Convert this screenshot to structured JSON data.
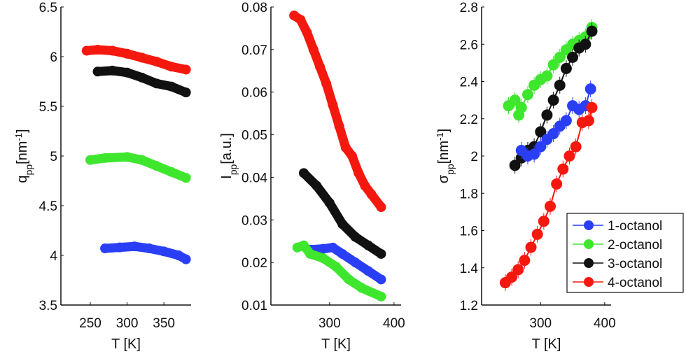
{
  "colors": {
    "1-octanol": "#2a3ff5",
    "2-octanol": "#3ee62e",
    "3-octanol": "#111111",
    "4-octanol": "#f5180f"
  },
  "legend": {
    "entries": [
      "1-octanol",
      "2-octanol",
      "3-octanol",
      "4-octanol"
    ],
    "placement": "bottom-right of third panel"
  },
  "chart_data": [
    {
      "type": "scatter",
      "xlabel": "T [K]",
      "ylabel": "q",
      "ylabel_sub": "pp",
      "ylabel_unit": "[nm",
      "ylabel_sup": "-1",
      "ylabel_close": "]",
      "xlim": [
        210,
        387
      ],
      "ylim": [
        3.5,
        6.5
      ],
      "xticks": [
        250,
        300,
        350
      ],
      "yticks": [
        3.5,
        4,
        4.5,
        5,
        5.5,
        6,
        6.5
      ],
      "ytick_labels": [
        "3.5",
        "4",
        "4.5",
        "5",
        "5.5",
        "6",
        "6.5"
      ],
      "series": [
        {
          "name": "4-octanol",
          "x": [
            245,
            260,
            280,
            300,
            320,
            340,
            360,
            380
          ],
          "y": [
            6.06,
            6.07,
            6.06,
            6.03,
            5.99,
            5.95,
            5.9,
            5.87
          ]
        },
        {
          "name": "3-octanol",
          "x": [
            260,
            280,
            300,
            320,
            340,
            360,
            380
          ],
          "y": [
            5.85,
            5.86,
            5.84,
            5.79,
            5.73,
            5.7,
            5.64
          ]
        },
        {
          "name": "2-octanol",
          "x": [
            250,
            270,
            300,
            320,
            340,
            360,
            380
          ],
          "y": [
            4.96,
            4.98,
            4.99,
            4.96,
            4.9,
            4.84,
            4.78
          ]
        },
        {
          "name": "1-octanol",
          "x": [
            270,
            290,
            310,
            330,
            350,
            370,
            380
          ],
          "y": [
            4.07,
            4.08,
            4.09,
            4.07,
            4.04,
            4.0,
            3.96
          ]
        }
      ]
    },
    {
      "type": "scatter",
      "xlabel": "T [K]",
      "ylabel": "I",
      "ylabel_sub": "pp",
      "ylabel_unit": "[a.u.]",
      "xlim": [
        209,
        411
      ],
      "ylim": [
        0.01,
        0.08
      ],
      "xticks": [
        300,
        400
      ],
      "yticks": [
        0.01,
        0.02,
        0.03,
        0.04,
        0.05,
        0.06,
        0.07,
        0.08
      ],
      "ytick_labels": [
        "0.01",
        "0.02",
        "0.03",
        "0.04",
        "0.05",
        "0.06",
        "0.07",
        "0.08"
      ],
      "series": [
        {
          "name": "4-octanol",
          "x": [
            245,
            255,
            265,
            275,
            285,
            295,
            305,
            315,
            325,
            335,
            345,
            355,
            365,
            380
          ],
          "y": [
            0.078,
            0.077,
            0.074,
            0.07,
            0.066,
            0.062,
            0.057,
            0.052,
            0.047,
            0.045,
            0.041,
            0.038,
            0.036,
            0.033
          ]
        },
        {
          "name": "3-octanol",
          "x": [
            260,
            280,
            300,
            320,
            340,
            360,
            380
          ],
          "y": [
            0.041,
            0.038,
            0.034,
            0.029,
            0.026,
            0.024,
            0.022
          ]
        },
        {
          "name": "1-octanol",
          "x": [
            270,
            290,
            305,
            320,
            340,
            360,
            380
          ],
          "y": [
            0.023,
            0.0232,
            0.0235,
            0.022,
            0.02,
            0.018,
            0.016
          ]
        },
        {
          "name": "2-octanol",
          "x": [
            250,
            260,
            270,
            290,
            310,
            330,
            350,
            380
          ],
          "y": [
            0.0235,
            0.024,
            0.022,
            0.021,
            0.019,
            0.016,
            0.014,
            0.012
          ]
        }
      ]
    },
    {
      "type": "scatter",
      "xlabel": "T [K]",
      "ylabel": "σ",
      "ylabel_sub": "pp",
      "ylabel_unit": "[nm",
      "ylabel_sup": "-1",
      "ylabel_close": "]",
      "xlim": [
        208,
        410
      ],
      "ylim": [
        1.2,
        2.8
      ],
      "xticks": [
        300,
        400
      ],
      "yticks": [
        1.2,
        1.4,
        1.6,
        1.8,
        2,
        2.2,
        2.4,
        2.6,
        2.8
      ],
      "ytick_labels": [
        "1.2",
        "1.4",
        "1.6",
        "1.8",
        "2",
        "2.2",
        "2.4",
        "2.6",
        "2.8"
      ],
      "error_bars": true,
      "series": [
        {
          "name": "2-octanol",
          "x": [
            250,
            260,
            266,
            270,
            280,
            290,
            300,
            310,
            320,
            330,
            340,
            350,
            360,
            370,
            380
          ],
          "y": [
            2.27,
            2.3,
            2.22,
            2.26,
            2.33,
            2.38,
            2.41,
            2.43,
            2.49,
            2.53,
            2.57,
            2.6,
            2.62,
            2.64,
            2.69
          ]
        },
        {
          "name": "3-octanol",
          "x": [
            260,
            270,
            280,
            290,
            300,
            310,
            320,
            330,
            340,
            350,
            360,
            370,
            380
          ],
          "y": [
            1.95,
            1.99,
            2.03,
            2.05,
            2.13,
            2.22,
            2.3,
            2.38,
            2.47,
            2.53,
            2.58,
            2.6,
            2.67
          ]
        },
        {
          "name": "1-octanol",
          "x": [
            270,
            280,
            290,
            300,
            310,
            320,
            330,
            340,
            350,
            360,
            370,
            378
          ],
          "y": [
            2.03,
            2.0,
            2.01,
            2.05,
            2.09,
            2.12,
            2.16,
            2.19,
            2.27,
            2.25,
            2.27,
            2.36
          ]
        },
        {
          "name": "4-octanol",
          "x": [
            245,
            255,
            265,
            275,
            285,
            295,
            305,
            315,
            325,
            335,
            345,
            355,
            365,
            375,
            380
          ],
          "y": [
            1.32,
            1.35,
            1.39,
            1.44,
            1.51,
            1.58,
            1.65,
            1.73,
            1.85,
            1.93,
            2.0,
            2.05,
            2.18,
            2.19,
            2.26
          ]
        }
      ]
    }
  ]
}
